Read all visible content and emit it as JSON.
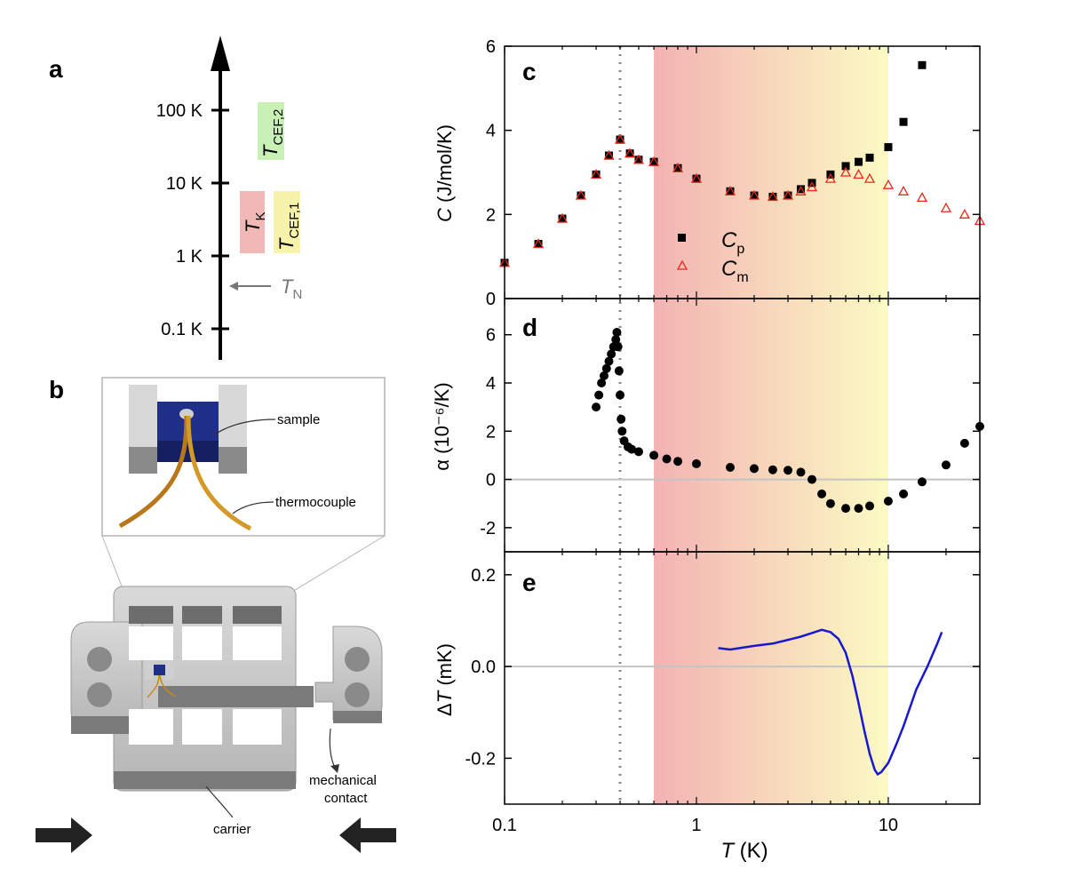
{
  "panels": {
    "a": "a",
    "b": "b",
    "c": "c",
    "d": "d",
    "e": "e"
  },
  "scale": {
    "ticks": [
      "100 K",
      "10 K",
      "1 K",
      "0.1 K"
    ],
    "tn_label": "T",
    "tn_sub": "N",
    "tk_label": "T",
    "tk_sub": "K",
    "tcef1_label": "T",
    "tcef1_sub": "CEF,1",
    "tcef2_label": "T",
    "tcef2_sub": "CEF,2"
  },
  "diagram": {
    "sample": "sample",
    "thermocouple": "thermocouple",
    "carrier": "carrier",
    "mechanical_contact": [
      "mechanical",
      "contact"
    ]
  },
  "colors": {
    "cp": "#000000",
    "cm": "#e8291c",
    "dT": "#1818d0",
    "tk_box": "#f2b8b5",
    "tcef1_box": "#f7f3ad",
    "tcef2_box": "#c9f0b5",
    "band_left": "#f3b3b3",
    "band_right": "#fbfac3"
  },
  "chart_data": [
    {
      "panel": "c",
      "type": "scatter",
      "xscale": "log",
      "xlim": [
        0.1,
        30
      ],
      "ylim": [
        0,
        6
      ],
      "yticks": [
        0,
        2,
        4,
        6
      ],
      "ylabel": "C (J/mol/K)",
      "series": [
        {
          "name": "Cp",
          "label_main": "C",
          "label_sub": "p",
          "marker": "square",
          "x": [
            0.1,
            0.15,
            0.2,
            0.25,
            0.3,
            0.35,
            0.4,
            0.45,
            0.5,
            0.6,
            0.8,
            1,
            1.5,
            2,
            2.5,
            3,
            3.5,
            4,
            5,
            6,
            7,
            8,
            10,
            12,
            15
          ],
          "y": [
            0.85,
            1.3,
            1.9,
            2.45,
            2.95,
            3.4,
            3.78,
            3.45,
            3.3,
            3.25,
            3.1,
            2.85,
            2.55,
            2.45,
            2.42,
            2.45,
            2.6,
            2.75,
            2.95,
            3.15,
            3.25,
            3.35,
            3.6,
            4.2,
            5.55
          ]
        },
        {
          "name": "Cm",
          "label_main": "C",
          "label_sub": "m",
          "marker": "triangle-open",
          "x": [
            0.1,
            0.15,
            0.2,
            0.25,
            0.3,
            0.35,
            0.4,
            0.45,
            0.5,
            0.6,
            0.8,
            1,
            1.5,
            2,
            2.5,
            3,
            3.5,
            4,
            5,
            6,
            7,
            8,
            10,
            12,
            15,
            20,
            25,
            30
          ],
          "y": [
            0.85,
            1.3,
            1.9,
            2.45,
            2.95,
            3.4,
            3.78,
            3.45,
            3.3,
            3.25,
            3.1,
            2.85,
            2.55,
            2.45,
            2.42,
            2.45,
            2.55,
            2.65,
            2.85,
            3.0,
            2.95,
            2.85,
            2.7,
            2.55,
            2.4,
            2.15,
            2.0,
            1.85
          ]
        }
      ]
    },
    {
      "panel": "d",
      "type": "scatter",
      "xscale": "log",
      "xlim": [
        0.1,
        30
      ],
      "ylim": [
        -3,
        7.5
      ],
      "yticks": [
        -2,
        0,
        2,
        4,
        6
      ],
      "ylabel": "α (10⁻⁶/K)",
      "series": [
        {
          "name": "alpha",
          "marker": "circle",
          "x": [
            0.3,
            0.31,
            0.32,
            0.33,
            0.34,
            0.35,
            0.36,
            0.37,
            0.38,
            0.385,
            0.39,
            0.395,
            0.4,
            0.405,
            0.41,
            0.42,
            0.44,
            0.46,
            0.5,
            0.6,
            0.7,
            0.8,
            1,
            1.5,
            2,
            2.5,
            3,
            3.5,
            4,
            4.5,
            5,
            6,
            7,
            8,
            10,
            12,
            15,
            20,
            25,
            30
          ],
          "y": [
            3.0,
            3.5,
            4.0,
            4.3,
            4.6,
            4.9,
            5.2,
            5.5,
            5.8,
            6.1,
            5.5,
            4.5,
            3.5,
            2.5,
            2.0,
            1.6,
            1.35,
            1.25,
            1.15,
            1.0,
            0.85,
            0.75,
            0.65,
            0.5,
            0.45,
            0.4,
            0.38,
            0.3,
            0.0,
            -0.6,
            -1.0,
            -1.2,
            -1.2,
            -1.1,
            -0.9,
            -0.6,
            -0.1,
            0.6,
            1.5,
            2.2
          ]
        }
      ]
    },
    {
      "panel": "e",
      "type": "line",
      "xscale": "log",
      "xlim": [
        0.1,
        30
      ],
      "ylim": [
        -0.3,
        0.25
      ],
      "yticks": [
        -0.2,
        0.0,
        0.2
      ],
      "yticklabels": [
        "-0.2",
        "0.0",
        "0.2"
      ],
      "ylabel": "ΔT (mK)",
      "xticks": [
        0.1,
        1,
        10
      ],
      "xticklabels": [
        "0.1",
        "1",
        "10"
      ],
      "xlabel_main": "T",
      "xlabel_units": " (K)",
      "series": [
        {
          "name": "dT",
          "x": [
            1.3,
            1.5,
            2,
            2.5,
            3,
            3.5,
            4,
            4.5,
            5,
            5.5,
            6,
            6.5,
            7,
            7.5,
            8,
            8.5,
            8.8,
            9.2,
            10,
            11,
            12,
            14,
            16,
            18,
            19
          ],
          "y": [
            0.04,
            0.037,
            0.045,
            0.05,
            0.058,
            0.065,
            0.073,
            0.08,
            0.075,
            0.06,
            0.03,
            -0.02,
            -0.08,
            -0.14,
            -0.19,
            -0.225,
            -0.235,
            -0.23,
            -0.21,
            -0.17,
            -0.13,
            -0.05,
            0.0,
            0.05,
            0.075
          ]
        }
      ]
    }
  ],
  "markers": {
    "dotted_line_T": 0.4,
    "band_start_T": 0.6,
    "band_end_T": 10
  }
}
